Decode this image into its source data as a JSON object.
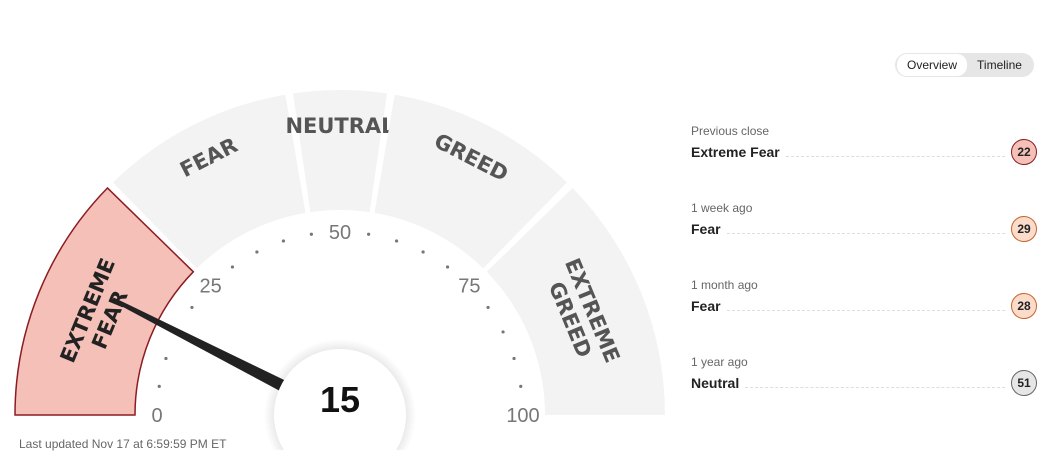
{
  "toggle": {
    "items": [
      "Overview",
      "Timeline"
    ],
    "active": "Overview"
  },
  "gauge": {
    "value": 15,
    "min": 0,
    "max": 100,
    "ticks": [
      0,
      25,
      50,
      75,
      100
    ],
    "segments": [
      {
        "label": [
          "EXTREME",
          "FEAR"
        ],
        "from": 0,
        "to": 25,
        "active": true
      },
      {
        "label": [
          "FEAR"
        ],
        "from": 25,
        "to": 45,
        "active": false
      },
      {
        "label": [
          "NEUTRAL"
        ],
        "from": 45,
        "to": 55,
        "active": false
      },
      {
        "label": [
          "GREED"
        ],
        "from": 55,
        "to": 75,
        "active": false
      },
      {
        "label": [
          "EXTREME",
          "GREED"
        ],
        "from": 75,
        "to": 100,
        "active": false
      }
    ],
    "colors": {
      "segment": "#f3f3f3",
      "active_fill": "#f4c0b8",
      "active_stroke": "#8b1c22",
      "needle": "#222222",
      "label": "#555555"
    }
  },
  "history": [
    {
      "label": "Previous close",
      "rating": "Extreme Fear",
      "value": "22",
      "fill": "#f4c0b8",
      "stroke": "#8b1c22"
    },
    {
      "label": "1 week ago",
      "rating": "Fear",
      "value": "29",
      "fill": "#fbdccb",
      "stroke": "#c8642a"
    },
    {
      "label": "1 month ago",
      "rating": "Fear",
      "value": "28",
      "fill": "#fbdccb",
      "stroke": "#c8642a"
    },
    {
      "label": "1 year ago",
      "rating": "Neutral",
      "value": "51",
      "fill": "#e6e6e6",
      "stroke": "#666666"
    }
  ],
  "last_updated": "Last updated Nov 17 at 6:59:59 PM ET"
}
